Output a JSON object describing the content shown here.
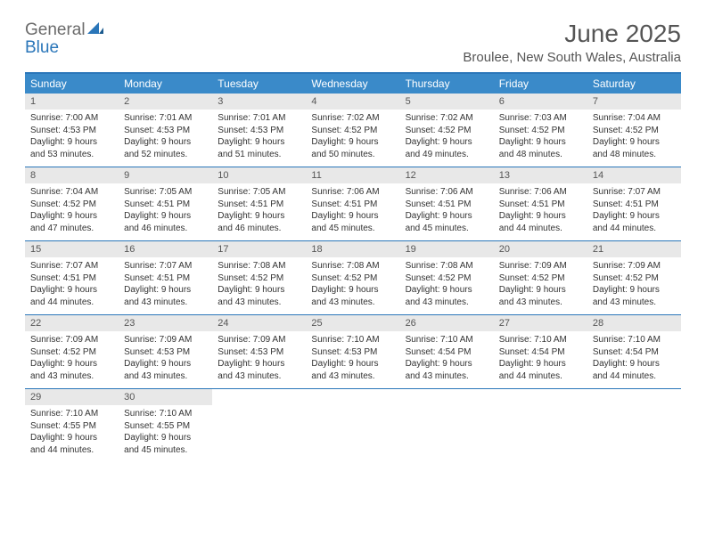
{
  "logo": {
    "general": "General",
    "blue": "Blue"
  },
  "title": "June 2025",
  "location": "Broulee, New South Wales, Australia",
  "day_names": [
    "Sunday",
    "Monday",
    "Tuesday",
    "Wednesday",
    "Thursday",
    "Friday",
    "Saturday"
  ],
  "colors": {
    "accent": "#2a76b9",
    "header_bg": "#3a8ac9",
    "daynum_bg": "#e8e8e8",
    "text_muted": "#555555",
    "text": "#333333",
    "background": "#ffffff"
  },
  "fonts": {
    "title_size_pt": 21,
    "location_size_pt": 11,
    "dayname_size_pt": 9,
    "body_size_pt": 7.5
  },
  "weeks": [
    [
      {
        "n": "1",
        "sunrise": "Sunrise: 7:00 AM",
        "sunset": "Sunset: 4:53 PM",
        "day1": "Daylight: 9 hours",
        "day2": "and 53 minutes."
      },
      {
        "n": "2",
        "sunrise": "Sunrise: 7:01 AM",
        "sunset": "Sunset: 4:53 PM",
        "day1": "Daylight: 9 hours",
        "day2": "and 52 minutes."
      },
      {
        "n": "3",
        "sunrise": "Sunrise: 7:01 AM",
        "sunset": "Sunset: 4:53 PM",
        "day1": "Daylight: 9 hours",
        "day2": "and 51 minutes."
      },
      {
        "n": "4",
        "sunrise": "Sunrise: 7:02 AM",
        "sunset": "Sunset: 4:52 PM",
        "day1": "Daylight: 9 hours",
        "day2": "and 50 minutes."
      },
      {
        "n": "5",
        "sunrise": "Sunrise: 7:02 AM",
        "sunset": "Sunset: 4:52 PM",
        "day1": "Daylight: 9 hours",
        "day2": "and 49 minutes."
      },
      {
        "n": "6",
        "sunrise": "Sunrise: 7:03 AM",
        "sunset": "Sunset: 4:52 PM",
        "day1": "Daylight: 9 hours",
        "day2": "and 48 minutes."
      },
      {
        "n": "7",
        "sunrise": "Sunrise: 7:04 AM",
        "sunset": "Sunset: 4:52 PM",
        "day1": "Daylight: 9 hours",
        "day2": "and 48 minutes."
      }
    ],
    [
      {
        "n": "8",
        "sunrise": "Sunrise: 7:04 AM",
        "sunset": "Sunset: 4:52 PM",
        "day1": "Daylight: 9 hours",
        "day2": "and 47 minutes."
      },
      {
        "n": "9",
        "sunrise": "Sunrise: 7:05 AM",
        "sunset": "Sunset: 4:51 PM",
        "day1": "Daylight: 9 hours",
        "day2": "and 46 minutes."
      },
      {
        "n": "10",
        "sunrise": "Sunrise: 7:05 AM",
        "sunset": "Sunset: 4:51 PM",
        "day1": "Daylight: 9 hours",
        "day2": "and 46 minutes."
      },
      {
        "n": "11",
        "sunrise": "Sunrise: 7:06 AM",
        "sunset": "Sunset: 4:51 PM",
        "day1": "Daylight: 9 hours",
        "day2": "and 45 minutes."
      },
      {
        "n": "12",
        "sunrise": "Sunrise: 7:06 AM",
        "sunset": "Sunset: 4:51 PM",
        "day1": "Daylight: 9 hours",
        "day2": "and 45 minutes."
      },
      {
        "n": "13",
        "sunrise": "Sunrise: 7:06 AM",
        "sunset": "Sunset: 4:51 PM",
        "day1": "Daylight: 9 hours",
        "day2": "and 44 minutes."
      },
      {
        "n": "14",
        "sunrise": "Sunrise: 7:07 AM",
        "sunset": "Sunset: 4:51 PM",
        "day1": "Daylight: 9 hours",
        "day2": "and 44 minutes."
      }
    ],
    [
      {
        "n": "15",
        "sunrise": "Sunrise: 7:07 AM",
        "sunset": "Sunset: 4:51 PM",
        "day1": "Daylight: 9 hours",
        "day2": "and 44 minutes."
      },
      {
        "n": "16",
        "sunrise": "Sunrise: 7:07 AM",
        "sunset": "Sunset: 4:51 PM",
        "day1": "Daylight: 9 hours",
        "day2": "and 43 minutes."
      },
      {
        "n": "17",
        "sunrise": "Sunrise: 7:08 AM",
        "sunset": "Sunset: 4:52 PM",
        "day1": "Daylight: 9 hours",
        "day2": "and 43 minutes."
      },
      {
        "n": "18",
        "sunrise": "Sunrise: 7:08 AM",
        "sunset": "Sunset: 4:52 PM",
        "day1": "Daylight: 9 hours",
        "day2": "and 43 minutes."
      },
      {
        "n": "19",
        "sunrise": "Sunrise: 7:08 AM",
        "sunset": "Sunset: 4:52 PM",
        "day1": "Daylight: 9 hours",
        "day2": "and 43 minutes."
      },
      {
        "n": "20",
        "sunrise": "Sunrise: 7:09 AM",
        "sunset": "Sunset: 4:52 PM",
        "day1": "Daylight: 9 hours",
        "day2": "and 43 minutes."
      },
      {
        "n": "21",
        "sunrise": "Sunrise: 7:09 AM",
        "sunset": "Sunset: 4:52 PM",
        "day1": "Daylight: 9 hours",
        "day2": "and 43 minutes."
      }
    ],
    [
      {
        "n": "22",
        "sunrise": "Sunrise: 7:09 AM",
        "sunset": "Sunset: 4:52 PM",
        "day1": "Daylight: 9 hours",
        "day2": "and 43 minutes."
      },
      {
        "n": "23",
        "sunrise": "Sunrise: 7:09 AM",
        "sunset": "Sunset: 4:53 PM",
        "day1": "Daylight: 9 hours",
        "day2": "and 43 minutes."
      },
      {
        "n": "24",
        "sunrise": "Sunrise: 7:09 AM",
        "sunset": "Sunset: 4:53 PM",
        "day1": "Daylight: 9 hours",
        "day2": "and 43 minutes."
      },
      {
        "n": "25",
        "sunrise": "Sunrise: 7:10 AM",
        "sunset": "Sunset: 4:53 PM",
        "day1": "Daylight: 9 hours",
        "day2": "and 43 minutes."
      },
      {
        "n": "26",
        "sunrise": "Sunrise: 7:10 AM",
        "sunset": "Sunset: 4:54 PM",
        "day1": "Daylight: 9 hours",
        "day2": "and 43 minutes."
      },
      {
        "n": "27",
        "sunrise": "Sunrise: 7:10 AM",
        "sunset": "Sunset: 4:54 PM",
        "day1": "Daylight: 9 hours",
        "day2": "and 44 minutes."
      },
      {
        "n": "28",
        "sunrise": "Sunrise: 7:10 AM",
        "sunset": "Sunset: 4:54 PM",
        "day1": "Daylight: 9 hours",
        "day2": "and 44 minutes."
      }
    ],
    [
      {
        "n": "29",
        "sunrise": "Sunrise: 7:10 AM",
        "sunset": "Sunset: 4:55 PM",
        "day1": "Daylight: 9 hours",
        "day2": "and 44 minutes."
      },
      {
        "n": "30",
        "sunrise": "Sunrise: 7:10 AM",
        "sunset": "Sunset: 4:55 PM",
        "day1": "Daylight: 9 hours",
        "day2": "and 45 minutes."
      },
      {
        "n": "",
        "sunrise": "",
        "sunset": "",
        "day1": "",
        "day2": ""
      },
      {
        "n": "",
        "sunrise": "",
        "sunset": "",
        "day1": "",
        "day2": ""
      },
      {
        "n": "",
        "sunrise": "",
        "sunset": "",
        "day1": "",
        "day2": ""
      },
      {
        "n": "",
        "sunrise": "",
        "sunset": "",
        "day1": "",
        "day2": ""
      },
      {
        "n": "",
        "sunrise": "",
        "sunset": "",
        "day1": "",
        "day2": ""
      }
    ]
  ]
}
